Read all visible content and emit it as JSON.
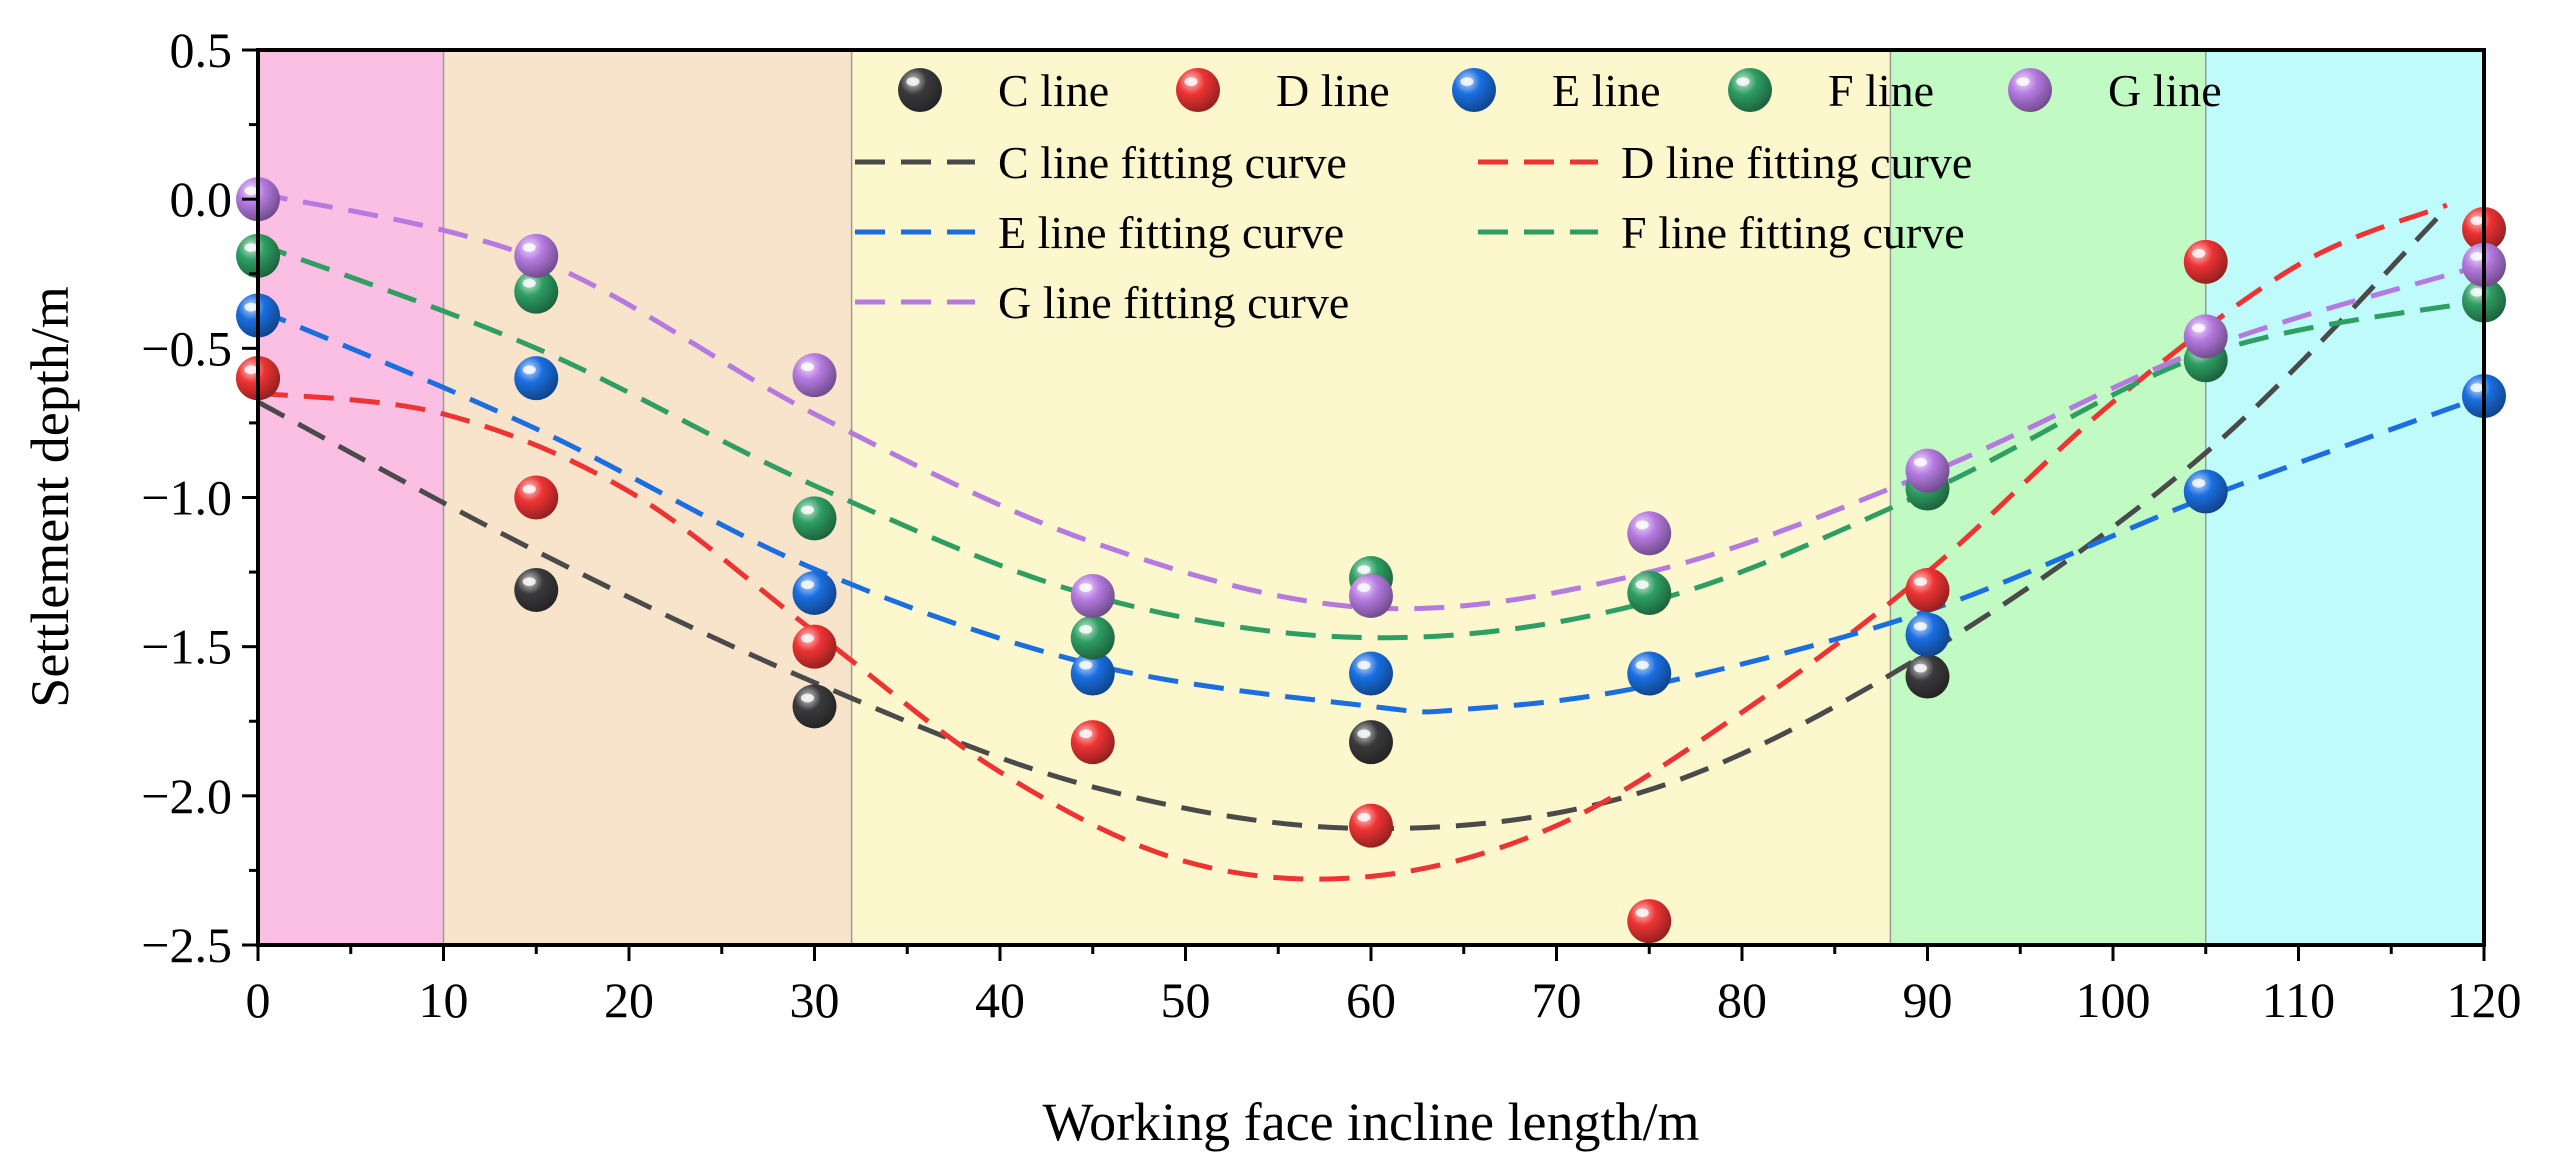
{
  "chart_data": {
    "type": "scatter",
    "title": "",
    "xlabel": "Working face incline length/m",
    "ylabel": "Settlement depth/m",
    "xlim": [
      0,
      120
    ],
    "ylim": [
      -2.5,
      0.5
    ],
    "x_ticks": [
      0,
      10,
      20,
      30,
      40,
      50,
      60,
      70,
      80,
      90,
      100,
      110,
      120
    ],
    "x_tick_labels": [
      "0",
      "10",
      "20",
      "30",
      "40",
      "50",
      "60",
      "70",
      "80",
      "90",
      "100",
      "110",
      "120"
    ],
    "y_ticks": [
      0.5,
      0.0,
      -0.5,
      -1.0,
      -1.5,
      -2.0,
      -2.5
    ],
    "y_tick_labels": [
      "0.5",
      "0.0",
      "−0.5",
      "−1.0",
      "−1.5",
      "−2.0",
      "−2.5"
    ],
    "grid": false,
    "legend_position": "top",
    "background_bands": [
      {
        "x_start": 0,
        "x_end": 10,
        "color": "#fbbfe4"
      },
      {
        "x_start": 10,
        "x_end": 32,
        "color": "#f8e3cb"
      },
      {
        "x_start": 32,
        "x_end": 88,
        "color": "#fcf7cc"
      },
      {
        "x_start": 88,
        "x_end": 105,
        "color": "#c2fac3"
      },
      {
        "x_start": 105,
        "x_end": 120,
        "color": "#c0fbfb"
      }
    ],
    "x": [
      0,
      15,
      30,
      45,
      60,
      75,
      90,
      105,
      120
    ],
    "series": [
      {
        "name": "C line",
        "color": "#3a3a3c",
        "values": [
          -0.6,
          -1.31,
          -1.7,
          null,
          -1.82,
          null,
          -1.6,
          null,
          null
        ]
      },
      {
        "name": "D line",
        "color": "#ee3333",
        "values": [
          -0.6,
          -1.0,
          -1.5,
          -1.82,
          -2.1,
          -2.42,
          -1.31,
          -0.21,
          -0.1
        ]
      },
      {
        "name": "E line",
        "color": "#1a6ee0",
        "values": [
          -0.39,
          -0.6,
          -1.32,
          -1.59,
          -1.59,
          -1.59,
          -1.46,
          -0.98,
          -0.66
        ]
      },
      {
        "name": "F line",
        "color": "#2e9e62",
        "values": [
          -0.19,
          -0.31,
          -1.07,
          -1.47,
          -1.27,
          -1.32,
          -0.97,
          -0.54,
          -0.34
        ]
      },
      {
        "name": "G line",
        "color": "#b57ae0",
        "values": [
          0.0,
          -0.19,
          -0.59,
          -1.33,
          -1.33,
          -1.12,
          -0.91,
          -0.46,
          -0.22
        ]
      }
    ],
    "fitting_curves": [
      {
        "name": "C line fitting curve",
        "color": "#4a4a4a",
        "x": [
          0,
          15,
          30,
          45,
          60,
          75,
          90,
          105,
          118
        ],
        "y": [
          -0.68,
          -1.18,
          -1.62,
          -1.97,
          -2.11,
          -1.98,
          -1.52,
          -0.85,
          -0.03
        ]
      },
      {
        "name": "D line fitting curve",
        "color": "#ee3333",
        "x": [
          0,
          10,
          20,
          30,
          40,
          50,
          60,
          70,
          80,
          90,
          100,
          110,
          118
        ],
        "y": [
          -0.65,
          -0.72,
          -0.98,
          -1.45,
          -1.92,
          -2.22,
          -2.27,
          -2.1,
          -1.72,
          -1.25,
          -0.68,
          -0.22,
          -0.02
        ]
      },
      {
        "name": "E line fitting curve",
        "color": "#1a6ee0",
        "x": [
          0,
          15,
          30,
          45,
          60,
          65,
          75,
          90,
          105,
          120
        ],
        "y": [
          -0.37,
          -0.77,
          -1.24,
          -1.56,
          -1.7,
          -1.71,
          -1.63,
          -1.38,
          -1.0,
          -0.66
        ]
      },
      {
        "name": "F line fitting curve",
        "color": "#2e9e62",
        "x": [
          0,
          15,
          30,
          45,
          60,
          75,
          90,
          105,
          120
        ],
        "y": [
          -0.15,
          -0.5,
          -0.96,
          -1.33,
          -1.47,
          -1.35,
          -0.98,
          -0.52,
          -0.34
        ]
      },
      {
        "name": "G line fitting curve",
        "color": "#b57ae0",
        "x": [
          0,
          15,
          30,
          45,
          60,
          75,
          90,
          105,
          120
        ],
        "y": [
          0.02,
          -0.2,
          -0.72,
          -1.15,
          -1.37,
          -1.25,
          -0.92,
          -0.5,
          -0.22
        ]
      }
    ]
  }
}
